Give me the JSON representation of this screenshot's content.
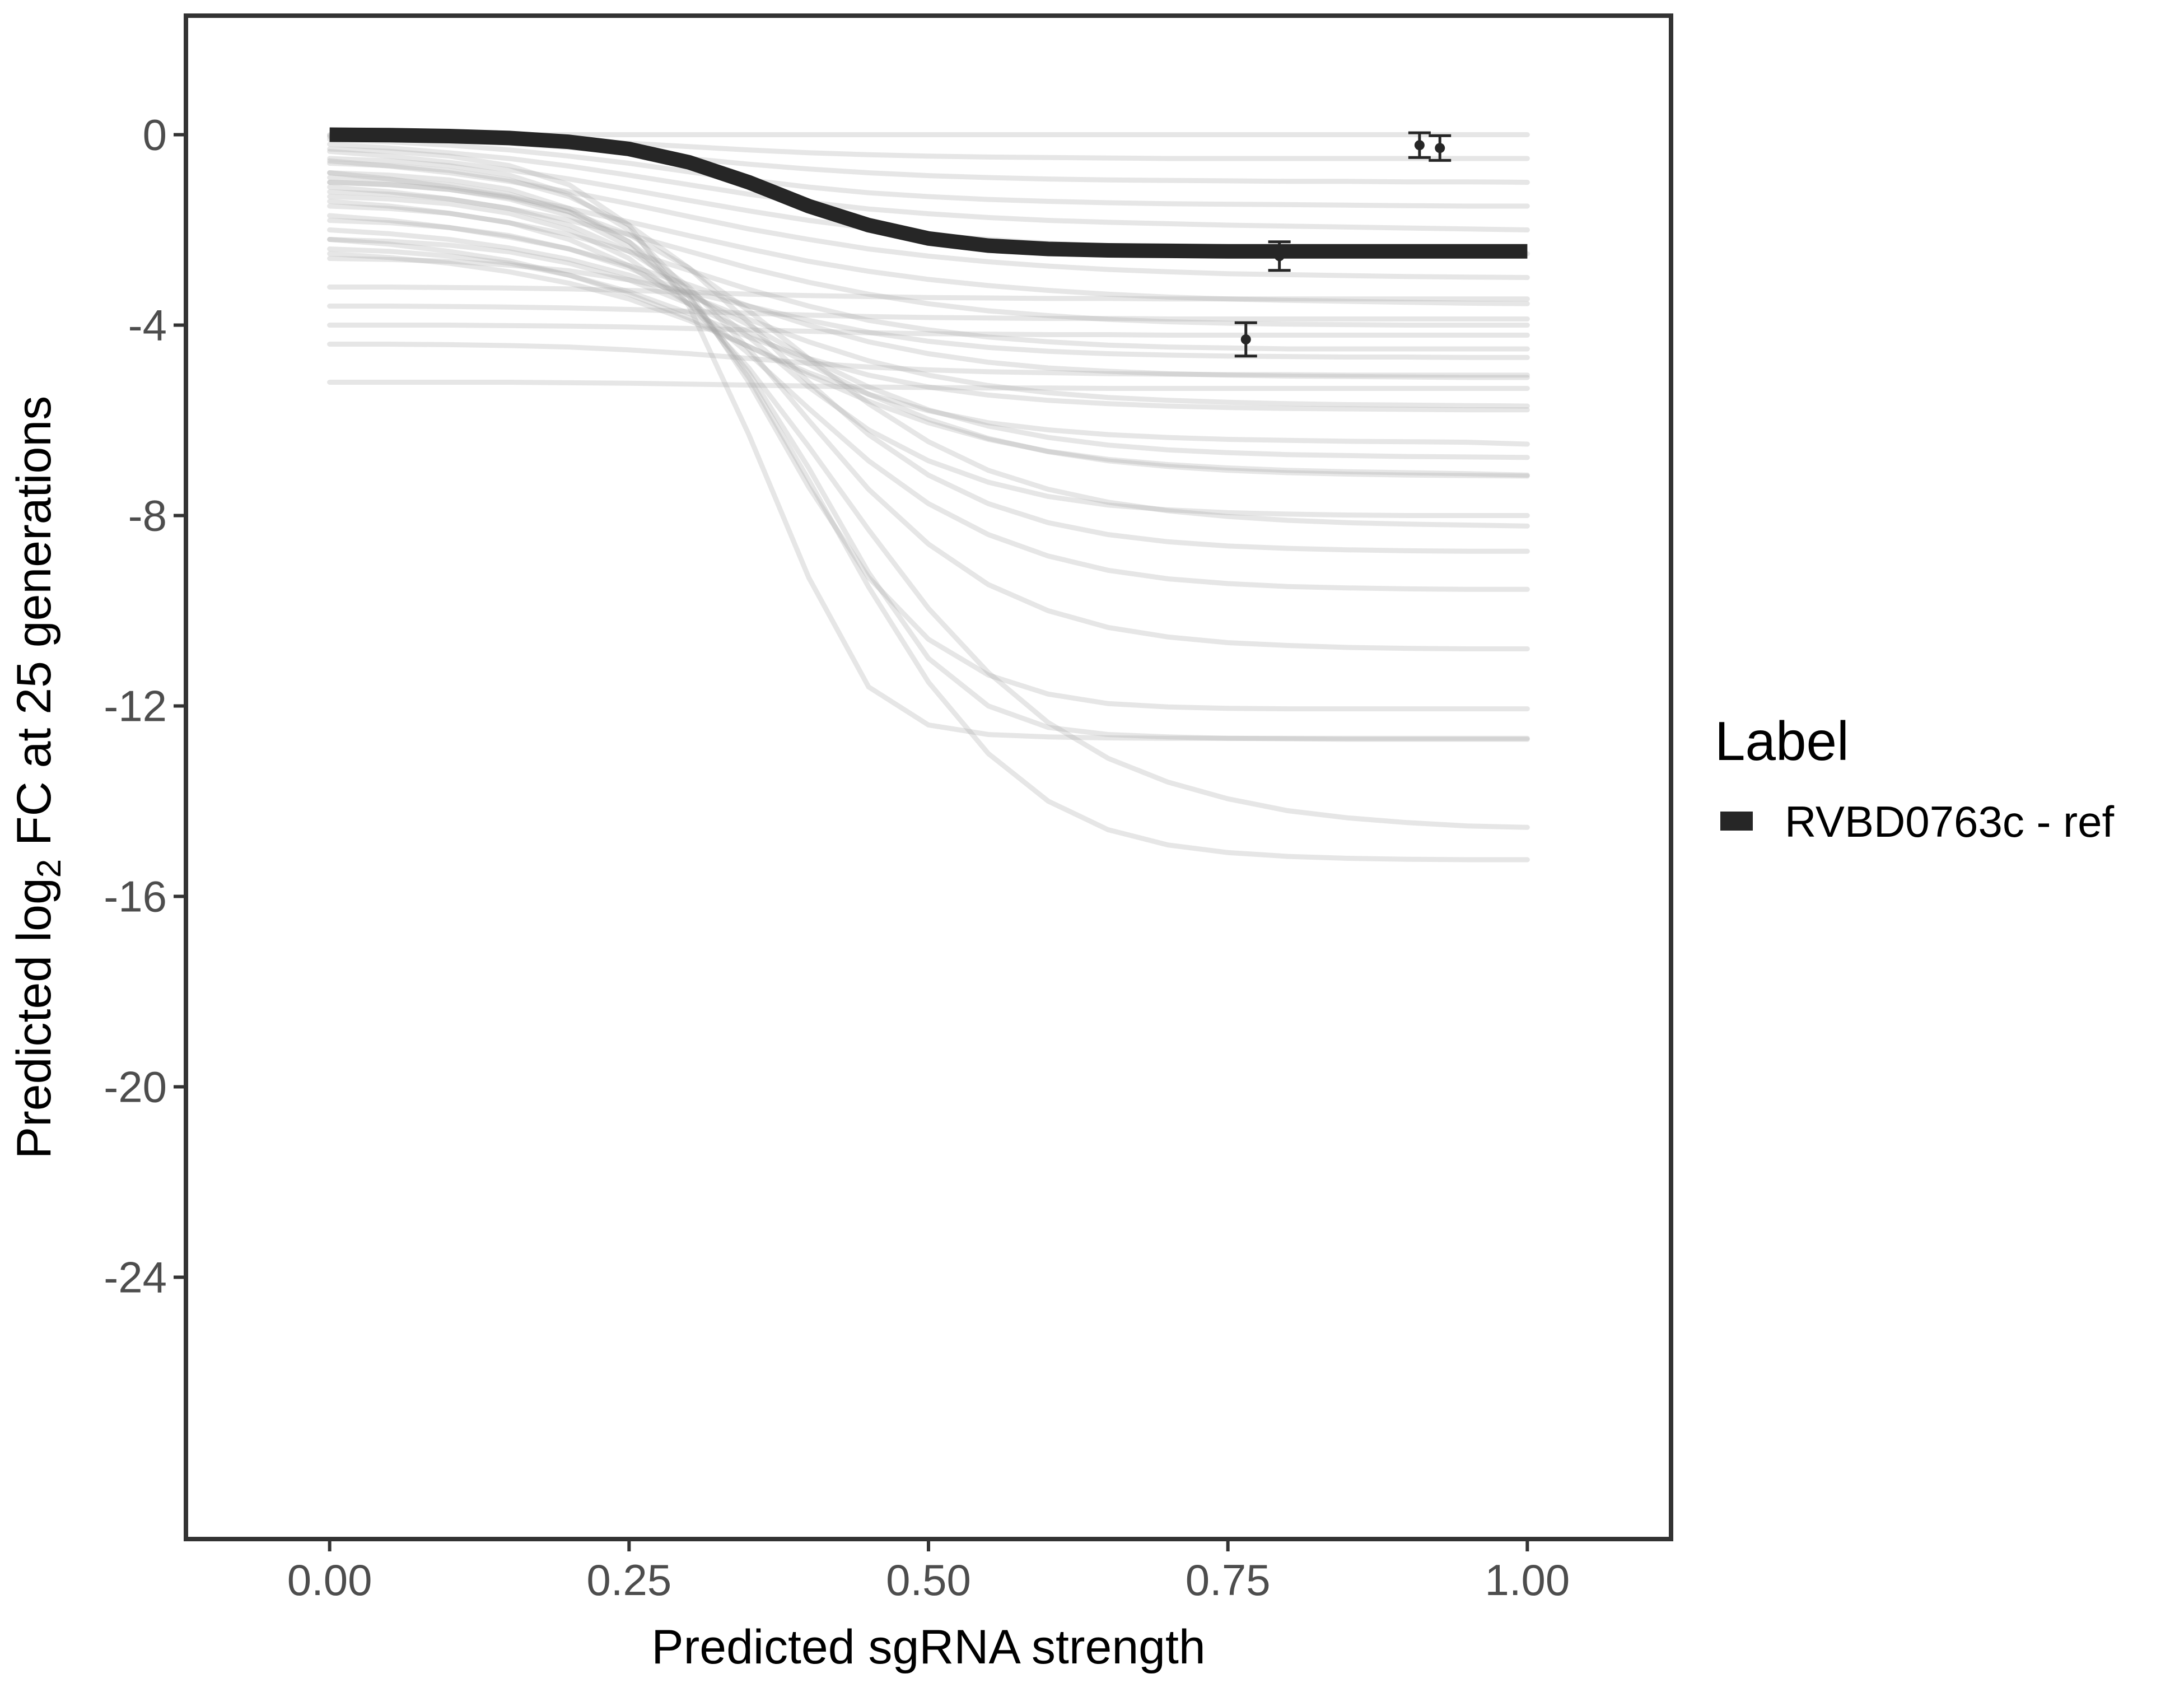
{
  "chart_data": {
    "type": "line",
    "xlabel": "Predicted sgRNA strength",
    "ylabel": {
      "prefix": "Predicted  log",
      "subscript": "2",
      "suffix": " FC at 25 generations"
    },
    "xlim": [
      -0.12,
      1.12
    ],
    "ylim": [
      -29.5,
      2.5
    ],
    "x_ticks": [
      0,
      0.25,
      0.5,
      0.75,
      1
    ],
    "x_tick_labels": [
      "0.00",
      "0.25",
      "0.50",
      "0.75",
      "1.00"
    ],
    "y_ticks": [
      0,
      -4,
      -8,
      -12,
      -16,
      -20,
      -24
    ],
    "y_tick_labels": [
      "0",
      "-4",
      "-8",
      "-12",
      "-16",
      "-20",
      "-24"
    ],
    "grid": false,
    "legend": {
      "title": "Label",
      "placement": "right",
      "entries": [
        {
          "label": "RVBD0763c - ref",
          "color": "#262626"
        }
      ]
    },
    "highlight_curve": {
      "name": "RVBD0763c - ref",
      "color": "#262626",
      "x": [
        0.0,
        0.05,
        0.1,
        0.15,
        0.2,
        0.25,
        0.3,
        0.35,
        0.4,
        0.45,
        0.5,
        0.55,
        0.6,
        0.65,
        0.7,
        0.75,
        0.8,
        0.85,
        0.9,
        0.95,
        1.0
      ],
      "y": [
        0.0,
        -0.01,
        -0.03,
        -0.07,
        -0.15,
        -0.3,
        -0.58,
        -1.0,
        -1.5,
        -1.9,
        -2.18,
        -2.33,
        -2.4,
        -2.43,
        -2.44,
        -2.45,
        -2.45,
        -2.45,
        -2.45,
        -2.45,
        -2.45
      ]
    },
    "background_curves": {
      "color": "#a6a6a6",
      "x": [
        0.0,
        0.05,
        0.1,
        0.15,
        0.2,
        0.25,
        0.3,
        0.35,
        0.4,
        0.45,
        0.5,
        0.55,
        0.6,
        0.65,
        0.7,
        0.75,
        0.8,
        0.85,
        0.9,
        0.95,
        1.0
      ],
      "series": [
        {
          "y": [
            0.0,
            0.0,
            0.0,
            0.0,
            0.0,
            0.0,
            0.0,
            0.0,
            0.0,
            0.0,
            0.0,
            0.0,
            0.0,
            0.0,
            0.0,
            0.0,
            0.0,
            0.0,
            0.0,
            0.0,
            0.0
          ]
        },
        {
          "y": [
            -0.02,
            -0.03,
            -0.05,
            -0.08,
            -0.12,
            -0.18,
            -0.25,
            -0.32,
            -0.38,
            -0.42,
            -0.45,
            -0.47,
            -0.48,
            -0.49,
            -0.5,
            -0.5,
            -0.5,
            -0.5,
            -0.5,
            -0.5,
            -0.5
          ]
        },
        {
          "y": [
            -0.05,
            -0.08,
            -0.12,
            -0.18,
            -0.27,
            -0.38,
            -0.5,
            -0.62,
            -0.72,
            -0.8,
            -0.86,
            -0.9,
            -0.93,
            -0.95,
            -0.96,
            -0.97,
            -0.98,
            -0.98,
            -0.99,
            -0.99,
            -1.0
          ]
        },
        {
          "y": [
            -0.1,
            -0.15,
            -0.22,
            -0.32,
            -0.45,
            -0.6,
            -0.78,
            -0.95,
            -1.1,
            -1.22,
            -1.3,
            -1.36,
            -1.4,
            -1.43,
            -1.45,
            -1.46,
            -1.47,
            -1.48,
            -1.49,
            -1.5,
            -1.5
          ]
        },
        {
          "y": [
            -0.2,
            -0.28,
            -0.38,
            -0.5,
            -0.66,
            -0.85,
            -1.05,
            -1.25,
            -1.42,
            -1.56,
            -1.66,
            -1.74,
            -1.8,
            -1.84,
            -1.87,
            -1.9,
            -1.92,
            -1.94,
            -1.96,
            -1.98,
            -2.0
          ]
        },
        {
          "y": [
            -0.35,
            -0.45,
            -0.58,
            -0.74,
            -0.93,
            -1.15,
            -1.38,
            -1.6,
            -1.8,
            -1.96,
            -2.1,
            -2.2,
            -2.28,
            -2.34,
            -2.38,
            -2.42,
            -2.44,
            -2.46,
            -2.48,
            -2.49,
            -2.5
          ]
        },
        {
          "y": [
            -0.55,
            -0.66,
            -0.8,
            -0.98,
            -1.2,
            -1.45,
            -1.72,
            -1.98,
            -2.2,
            -2.4,
            -2.55,
            -2.67,
            -2.76,
            -2.83,
            -2.88,
            -2.92,
            -2.94,
            -2.96,
            -2.98,
            -2.99,
            -3.0
          ]
        },
        {
          "y": [
            -0.8,
            -0.93,
            -1.1,
            -1.3,
            -1.55,
            -1.83,
            -2.12,
            -2.4,
            -2.66,
            -2.87,
            -3.04,
            -3.17,
            -3.27,
            -3.35,
            -3.41,
            -3.45,
            -3.48,
            -3.5,
            -3.52,
            -3.54,
            -3.55
          ]
        },
        {
          "y": [
            -1.1,
            -1.2,
            -1.35,
            -1.55,
            -1.8,
            -2.1,
            -2.45,
            -2.8,
            -3.1,
            -3.35,
            -3.55,
            -3.7,
            -3.8,
            -3.88,
            -3.93,
            -3.96,
            -3.98,
            -3.99,
            -4.0,
            -4.0,
            -4.0
          ]
        },
        {
          "y": [
            -1.4,
            -1.5,
            -1.65,
            -1.85,
            -2.1,
            -2.45,
            -2.85,
            -3.25,
            -3.6,
            -3.9,
            -4.1,
            -4.25,
            -4.35,
            -4.42,
            -4.46,
            -4.48,
            -4.5,
            -4.5,
            -4.5,
            -4.5,
            -4.5
          ]
        },
        {
          "y": [
            -1.7,
            -1.8,
            -1.95,
            -2.15,
            -2.4,
            -2.75,
            -3.15,
            -3.6,
            -4.0,
            -4.35,
            -4.6,
            -4.78,
            -4.9,
            -4.97,
            -5.02,
            -5.05,
            -5.07,
            -5.08,
            -5.09,
            -5.1,
            -5.1
          ]
        },
        {
          "y": [
            -2.0,
            -2.08,
            -2.2,
            -2.38,
            -2.62,
            -2.95,
            -3.38,
            -3.88,
            -4.35,
            -4.75,
            -5.05,
            -5.27,
            -5.42,
            -5.52,
            -5.58,
            -5.62,
            -5.65,
            -5.67,
            -5.68,
            -5.69,
            -5.7
          ]
        },
        {
          "y": [
            -2.2,
            -2.3,
            -2.45,
            -2.65,
            -2.95,
            -3.35,
            -3.85,
            -4.45,
            -5.0,
            -5.45,
            -5.8,
            -6.05,
            -6.2,
            -6.3,
            -6.36,
            -6.4,
            -6.42,
            -6.44,
            -6.45,
            -6.46,
            -6.5
          ]
        },
        {
          "y": [
            -2.5,
            -2.58,
            -2.7,
            -2.88,
            -3.12,
            -3.45,
            -3.9,
            -4.45,
            -5.05,
            -5.6,
            -6.05,
            -6.4,
            -6.65,
            -6.82,
            -6.93,
            -7.0,
            -7.05,
            -7.08,
            -7.1,
            -7.12,
            -7.15
          ]
        },
        {
          "y": [
            -1.2,
            -1.25,
            -1.35,
            -1.55,
            -1.9,
            -2.45,
            -3.25,
            -4.25,
            -5.3,
            -6.2,
            -6.85,
            -7.3,
            -7.6,
            -7.78,
            -7.88,
            -7.94,
            -7.97,
            -7.99,
            -8.0,
            -8.0,
            -8.0
          ]
        },
        {
          "y": [
            -0.6,
            -0.65,
            -0.75,
            -0.95,
            -1.3,
            -1.9,
            -2.8,
            -3.95,
            -5.2,
            -6.3,
            -7.15,
            -7.75,
            -8.15,
            -8.4,
            -8.55,
            -8.64,
            -8.69,
            -8.72,
            -8.74,
            -8.75,
            -8.75
          ]
        },
        {
          "y": [
            -1.5,
            -1.55,
            -1.65,
            -1.85,
            -2.2,
            -2.75,
            -3.55,
            -4.6,
            -5.75,
            -6.85,
            -7.75,
            -8.4,
            -8.85,
            -9.15,
            -9.33,
            -9.43,
            -9.49,
            -9.52,
            -9.54,
            -9.55,
            -9.55
          ]
        },
        {
          "y": [
            -0.9,
            -0.95,
            -1.05,
            -1.25,
            -1.62,
            -2.25,
            -3.2,
            -4.5,
            -6.0,
            -7.45,
            -8.6,
            -9.45,
            -10.0,
            -10.35,
            -10.55,
            -10.67,
            -10.73,
            -10.77,
            -10.79,
            -10.8,
            -10.8
          ]
        },
        {
          "y": [
            -0.5,
            -0.55,
            -0.65,
            -0.85,
            -1.25,
            -2.0,
            -3.3,
            -5.2,
            -7.4,
            -9.3,
            -10.6,
            -11.35,
            -11.75,
            -11.95,
            -12.02,
            -12.05,
            -12.06,
            -12.06,
            -12.06,
            -12.06,
            -12.06
          ]
        },
        {
          "y": [
            -1.0,
            -1.05,
            -1.15,
            -1.35,
            -1.7,
            -2.35,
            -3.4,
            -5.0,
            -7.0,
            -9.2,
            -11.0,
            -12.0,
            -12.45,
            -12.6,
            -12.65,
            -12.68,
            -12.69,
            -12.7,
            -12.7,
            -12.7,
            -12.7
          ]
        },
        {
          "y": [
            -0.3,
            -0.35,
            -0.45,
            -0.65,
            -1.05,
            -1.9,
            -3.6,
            -6.3,
            -9.3,
            -11.6,
            -12.4,
            -12.6,
            -12.65,
            -12.67,
            -12.68,
            -12.68,
            -12.68,
            -12.68,
            -12.68,
            -12.68,
            -12.68
          ]
        },
        {
          "y": [
            -1.3,
            -1.35,
            -1.45,
            -1.65,
            -2.0,
            -2.6,
            -3.55,
            -4.9,
            -6.55,
            -8.3,
            -9.95,
            -11.3,
            -12.35,
            -13.1,
            -13.6,
            -13.95,
            -14.2,
            -14.35,
            -14.45,
            -14.52,
            -14.55
          ]
        },
        {
          "y": [
            -0.8,
            -0.85,
            -0.95,
            -1.15,
            -1.55,
            -2.25,
            -3.4,
            -5.1,
            -7.25,
            -9.5,
            -11.5,
            -13.0,
            -14.0,
            -14.6,
            -14.92,
            -15.08,
            -15.16,
            -15.2,
            -15.22,
            -15.23,
            -15.23
          ]
        },
        {
          "y": [
            -2.4,
            -2.45,
            -2.55,
            -2.7,
            -2.95,
            -3.3,
            -3.75,
            -4.25,
            -4.7,
            -5.05,
            -5.3,
            -5.47,
            -5.58,
            -5.65,
            -5.7,
            -5.73,
            -5.75,
            -5.76,
            -5.77,
            -5.78,
            -5.78
          ]
        },
        {
          "y": [
            -2.6,
            -2.62,
            -2.66,
            -2.74,
            -2.86,
            -3.05,
            -3.3,
            -3.6,
            -3.9,
            -4.15,
            -4.34,
            -4.47,
            -4.55,
            -4.6,
            -4.63,
            -4.65,
            -4.66,
            -4.67,
            -4.67,
            -4.68,
            -4.68
          ]
        },
        {
          "y": [
            -3.2,
            -3.2,
            -3.21,
            -3.22,
            -3.24,
            -3.27,
            -3.31,
            -3.35,
            -3.38,
            -3.4,
            -3.42,
            -3.43,
            -3.44,
            -3.44,
            -3.45,
            -3.45,
            -3.45,
            -3.45,
            -3.45,
            -3.45,
            -3.45
          ]
        },
        {
          "y": [
            -3.6,
            -3.6,
            -3.61,
            -3.62,
            -3.64,
            -3.67,
            -3.71,
            -3.75,
            -3.79,
            -3.82,
            -3.84,
            -3.85,
            -3.86,
            -3.86,
            -3.87,
            -3.87,
            -3.87,
            -3.87,
            -3.87,
            -3.87,
            -3.87
          ]
        },
        {
          "y": [
            -4.0,
            -4.0,
            -4.0,
            -4.01,
            -4.02,
            -4.04,
            -4.07,
            -4.1,
            -4.13,
            -4.16,
            -4.18,
            -4.19,
            -4.2,
            -4.2,
            -4.21,
            -4.21,
            -4.21,
            -4.21,
            -4.21,
            -4.21,
            -4.21
          ]
        },
        {
          "y": [
            -4.4,
            -4.4,
            -4.41,
            -4.43,
            -4.46,
            -4.52,
            -4.6,
            -4.7,
            -4.8,
            -4.88,
            -4.94,
            -4.98,
            -5.0,
            -5.02,
            -5.03,
            -5.04,
            -5.04,
            -5.05,
            -5.05,
            -5.05,
            -5.05
          ]
        },
        {
          "y": [
            -5.2,
            -5.2,
            -5.2,
            -5.2,
            -5.21,
            -5.22,
            -5.24,
            -5.26,
            -5.28,
            -5.3,
            -5.31,
            -5.32,
            -5.32,
            -5.33,
            -5.33,
            -5.33,
            -5.33,
            -5.33,
            -5.33,
            -5.33,
            -5.33
          ]
        },
        {
          "y": [
            -1.8,
            -1.85,
            -1.95,
            -2.12,
            -2.4,
            -2.8,
            -3.35,
            -4.0,
            -4.7,
            -5.3,
            -5.78,
            -6.12,
            -6.36,
            -6.52,
            -6.62,
            -6.68,
            -6.72,
            -6.74,
            -6.76,
            -6.77,
            -6.78
          ]
        },
        {
          "y": [
            -2.2,
            -2.24,
            -2.32,
            -2.46,
            -2.7,
            -3.05,
            -3.55,
            -4.15,
            -4.82,
            -5.45,
            -5.98,
            -6.38,
            -6.66,
            -6.85,
            -6.97,
            -7.05,
            -7.1,
            -7.13,
            -7.15,
            -7.16,
            -7.17
          ]
        },
        {
          "y": [
            -1.0,
            -1.05,
            -1.15,
            -1.32,
            -1.62,
            -2.1,
            -2.8,
            -3.7,
            -4.7,
            -5.65,
            -6.45,
            -7.05,
            -7.45,
            -7.72,
            -7.9,
            -8.02,
            -8.1,
            -8.15,
            -8.18,
            -8.2,
            -8.22
          ]
        }
      ]
    },
    "points": [
      {
        "x": 0.765,
        "y": -4.3,
        "ymin": -4.65,
        "ymax": -3.95
      },
      {
        "x": 0.793,
        "y": -2.55,
        "ymin": -2.85,
        "ymax": -2.25
      },
      {
        "x": 0.91,
        "y": -0.22,
        "ymin": -0.48,
        "ymax": 0.04
      },
      {
        "x": 0.927,
        "y": -0.28,
        "ymin": -0.54,
        "ymax": -0.02
      }
    ]
  }
}
